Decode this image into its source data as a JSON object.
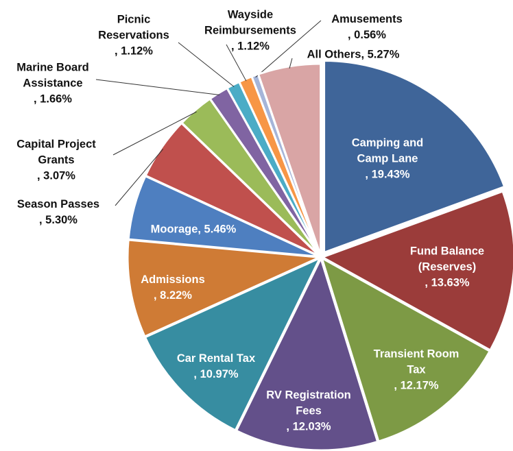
{
  "chart_data": {
    "type": "pie",
    "categories": [
      "Camping and Camp Lane",
      "Fund Balance (Reserves)",
      "Transient Room Tax",
      "RV Registration Fees",
      "Car Rental Tax",
      "Admissions",
      "Moorage",
      "Season Passes",
      "Capital Project Grants",
      "Marine Board Assistance",
      "Picnic Reservations",
      "Wayside Reimbursements",
      "Amusements",
      "All Others"
    ],
    "values": [
      19.43,
      13.63,
      12.17,
      12.03,
      10.97,
      8.22,
      5.46,
      5.3,
      3.07,
      1.66,
      1.12,
      1.12,
      0.56,
      5.27
    ],
    "value_labels": [
      ", 19.43%",
      ", 13.63%",
      ", 12.17%",
      ", 12.03%",
      ", 10.97%",
      ", 8.22%",
      ", 5.46%",
      ", 5.30%",
      ", 3.07%",
      ", 1.66%",
      ", 1.12%",
      ", 1.12%",
      ", 0.56%",
      ", 5.27%"
    ],
    "colors": [
      "#3f6599",
      "#9b3c3a",
      "#7d9a45",
      "#63508a",
      "#378da1",
      "#cf7b35",
      "#4e7fc0",
      "#c0504d",
      "#9bbb59",
      "#8064a2",
      "#4bacc6",
      "#f79646",
      "#a5b5d9",
      "#d9a5a5"
    ]
  }
}
